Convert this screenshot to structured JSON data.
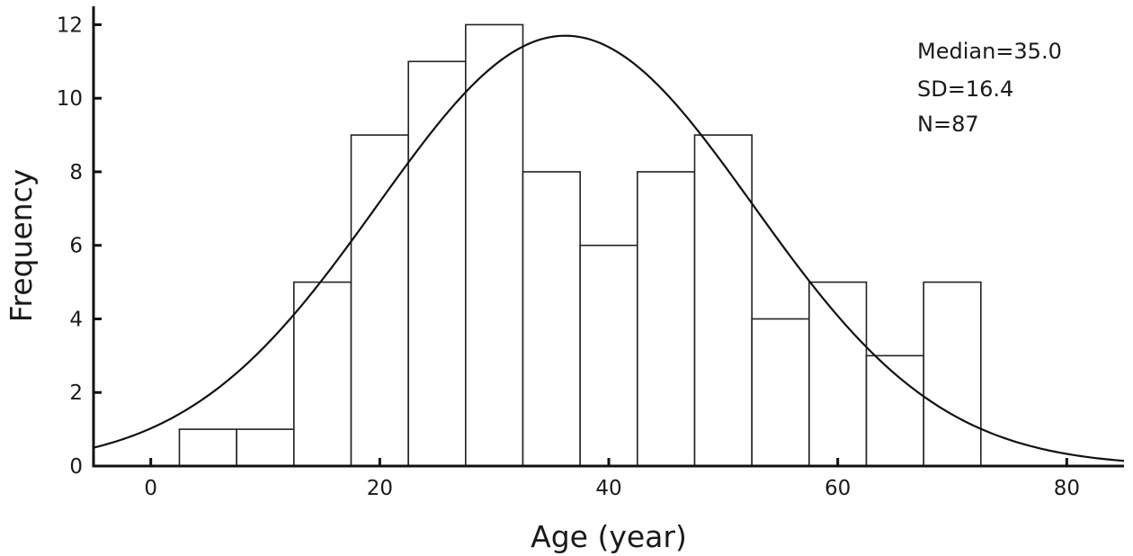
{
  "chart_data": {
    "type": "bar",
    "subtype": "histogram",
    "title": "",
    "xlabel": "Age (year)",
    "ylabel": "Frequency",
    "xlim": [
      -5,
      85
    ],
    "ylim": [
      0,
      12.5
    ],
    "x_ticks": [
      0,
      20,
      40,
      60,
      80
    ],
    "y_ticks": [
      0,
      2,
      4,
      6,
      8,
      10,
      12
    ],
    "bin_width": 5,
    "bins": [
      {
        "start": 2.5,
        "end": 7.5,
        "count": 1
      },
      {
        "start": 7.5,
        "end": 12.5,
        "count": 1
      },
      {
        "start": 12.5,
        "end": 17.5,
        "count": 5
      },
      {
        "start": 17.5,
        "end": 22.5,
        "count": 9
      },
      {
        "start": 22.5,
        "end": 27.5,
        "count": 11
      },
      {
        "start": 27.5,
        "end": 32.5,
        "count": 12
      },
      {
        "start": 32.5,
        "end": 37.5,
        "count": 8
      },
      {
        "start": 37.5,
        "end": 42.5,
        "count": 6
      },
      {
        "start": 42.5,
        "end": 47.5,
        "count": 8
      },
      {
        "start": 47.5,
        "end": 52.5,
        "count": 9
      },
      {
        "start": 52.5,
        "end": 57.5,
        "count": 4
      },
      {
        "start": 57.5,
        "end": 62.5,
        "count": 5
      },
      {
        "start": 62.5,
        "end": 67.5,
        "count": 3
      },
      {
        "start": 67.5,
        "end": 72.5,
        "count": 5
      }
    ],
    "normal_curve": {
      "mean": 36.2,
      "sd": 16.4,
      "peak": 11.7
    },
    "grid": false,
    "annotations": [
      "Median=35.0",
      "SD=16.4",
      "N=87"
    ]
  }
}
